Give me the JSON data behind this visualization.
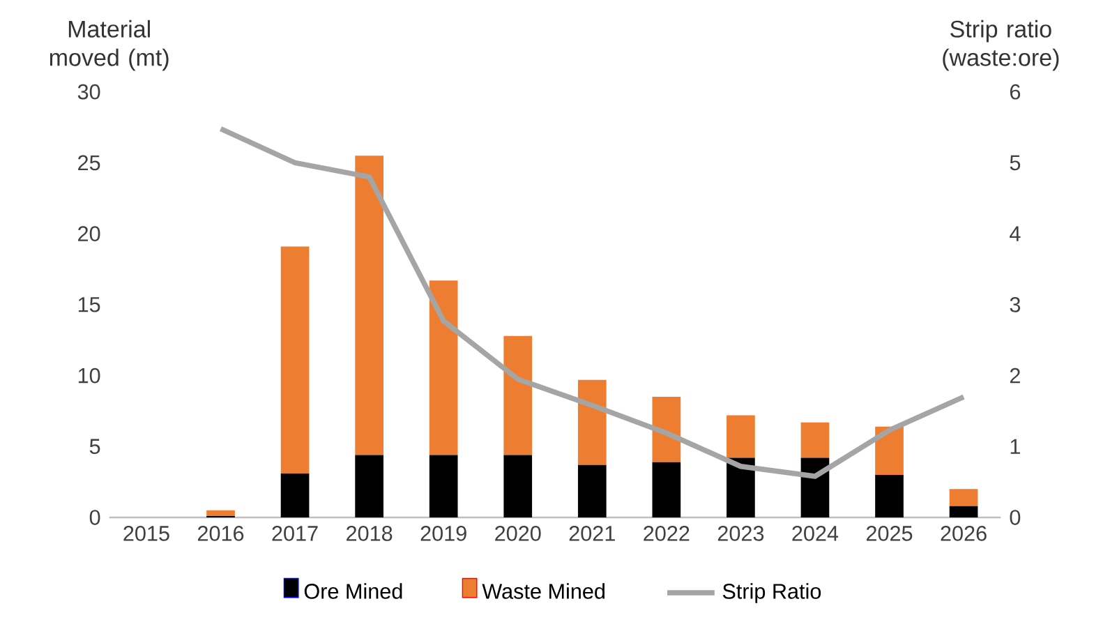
{
  "chart_data": {
    "type": "bar",
    "stacked": true,
    "ylabel": "Material moved (mt)",
    "y2label": "Strip ratio (waste:ore)",
    "categories": [
      "2015",
      "2016",
      "2017",
      "2018",
      "2019",
      "2020",
      "2021",
      "2022",
      "2023",
      "2024",
      "2025",
      "2026"
    ],
    "series": [
      {
        "name": "Ore Mined",
        "color": "#000000",
        "values": [
          0,
          0.1,
          3.1,
          4.4,
          4.4,
          4.4,
          3.7,
          3.9,
          4.2,
          4.2,
          3.0,
          0.8
        ]
      },
      {
        "name": "Waste Mined",
        "color": "#ed7d31",
        "values": [
          0,
          0.4,
          16.0,
          21.1,
          12.3,
          8.4,
          6.0,
          4.6,
          3.0,
          2.5,
          3.4,
          1.2
        ]
      },
      {
        "name": "Strip Ratio",
        "type": "line",
        "axis": "y2",
        "color": "#a5a5a5",
        "values": [
          null,
          5.48,
          5.0,
          4.8,
          2.77,
          1.95,
          1.58,
          1.19,
          0.72,
          0.58,
          1.23,
          1.7
        ]
      }
    ],
    "ylim": [
      0,
      30
    ],
    "yticks": [
      0,
      5,
      10,
      15,
      20,
      25,
      30
    ],
    "y2lim": [
      0,
      6
    ],
    "y2ticks": [
      0,
      1,
      2,
      3,
      4,
      5,
      6
    ],
    "legend": "bottom",
    "grid": false
  }
}
